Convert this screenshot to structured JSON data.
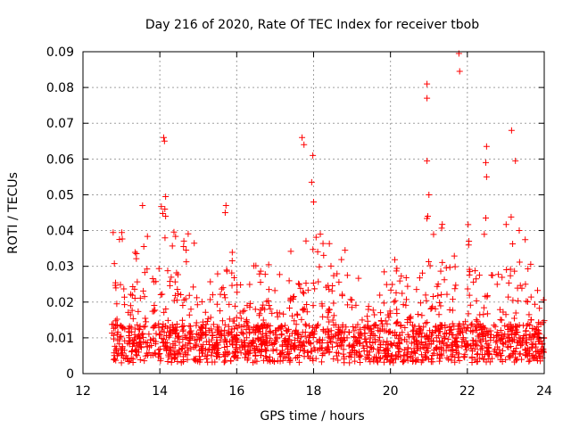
{
  "chart_data": {
    "type": "scatter",
    "title": "Day 216 of 2020, Rate Of TEC Index for receiver tbob",
    "xlabel": "GPS time / hours",
    "ylabel": "ROTI / TECUs",
    "xlim": [
      12,
      24
    ],
    "ylim": [
      0,
      0.09
    ],
    "grid": true,
    "marker": "+",
    "series_color": "#ff0000",
    "x_ticks": [
      {
        "value": 12,
        "label": "12"
      },
      {
        "value": 14,
        "label": "14"
      },
      {
        "value": 16,
        "label": "16"
      },
      {
        "value": 18,
        "label": "18"
      },
      {
        "value": 20,
        "label": "20"
      },
      {
        "value": 22,
        "label": "22"
      },
      {
        "value": 24,
        "label": "24"
      }
    ],
    "y_ticks": [
      {
        "value": 0,
        "label": "0"
      },
      {
        "value": 0.01,
        "label": "0.01"
      },
      {
        "value": 0.02,
        "label": "0.02"
      },
      {
        "value": 0.03,
        "label": "0.03"
      },
      {
        "value": 0.04,
        "label": "0.04"
      },
      {
        "value": 0.05,
        "label": "0.05"
      },
      {
        "value": 0.06,
        "label": "0.06"
      },
      {
        "value": 0.07,
        "label": "0.07"
      },
      {
        "value": 0.08,
        "label": "0.08"
      },
      {
        "value": 0.09,
        "label": "0.09"
      }
    ],
    "data_x_range": [
      12.75,
      24.0
    ],
    "density_envelope": [
      {
        "x": 12.8,
        "typical_max": 0.035
      },
      {
        "x": 13.5,
        "typical_max": 0.03
      },
      {
        "x": 14.1,
        "typical_max": 0.045
      },
      {
        "x": 15.0,
        "typical_max": 0.03
      },
      {
        "x": 15.7,
        "typical_max": 0.04
      },
      {
        "x": 16.5,
        "typical_max": 0.025
      },
      {
        "x": 17.5,
        "typical_max": 0.03
      },
      {
        "x": 18.0,
        "typical_max": 0.037
      },
      {
        "x": 19.0,
        "typical_max": 0.028
      },
      {
        "x": 20.0,
        "typical_max": 0.025
      },
      {
        "x": 21.0,
        "typical_max": 0.04
      },
      {
        "x": 21.8,
        "typical_max": 0.04
      },
      {
        "x": 22.5,
        "typical_max": 0.035
      },
      {
        "x": 23.3,
        "typical_max": 0.04
      },
      {
        "x": 24.0,
        "typical_max": 0.015
      }
    ],
    "outliers": [
      {
        "x": 13.55,
        "y": 0.047
      },
      {
        "x": 14.1,
        "y": 0.066
      },
      {
        "x": 14.12,
        "y": 0.065
      },
      {
        "x": 14.15,
        "y": 0.0495
      },
      {
        "x": 14.13,
        "y": 0.046
      },
      {
        "x": 14.15,
        "y": 0.044
      },
      {
        "x": 15.72,
        "y": 0.047
      },
      {
        "x": 15.7,
        "y": 0.045
      },
      {
        "x": 17.7,
        "y": 0.066
      },
      {
        "x": 17.75,
        "y": 0.064
      },
      {
        "x": 17.98,
        "y": 0.061
      },
      {
        "x": 17.95,
        "y": 0.0535
      },
      {
        "x": 18.0,
        "y": 0.048
      },
      {
        "x": 20.95,
        "y": 0.081
      },
      {
        "x": 20.95,
        "y": 0.077
      },
      {
        "x": 20.95,
        "y": 0.0595
      },
      {
        "x": 21.0,
        "y": 0.05
      },
      {
        "x": 20.97,
        "y": 0.044
      },
      {
        "x": 21.78,
        "y": 0.0895
      },
      {
        "x": 21.8,
        "y": 0.0845
      },
      {
        "x": 22.5,
        "y": 0.0635
      },
      {
        "x": 22.48,
        "y": 0.059
      },
      {
        "x": 22.5,
        "y": 0.055
      },
      {
        "x": 22.48,
        "y": 0.0435
      },
      {
        "x": 23.15,
        "y": 0.068
      },
      {
        "x": 23.25,
        "y": 0.0595
      },
      {
        "x": 23.35,
        "y": 0.04
      }
    ]
  }
}
